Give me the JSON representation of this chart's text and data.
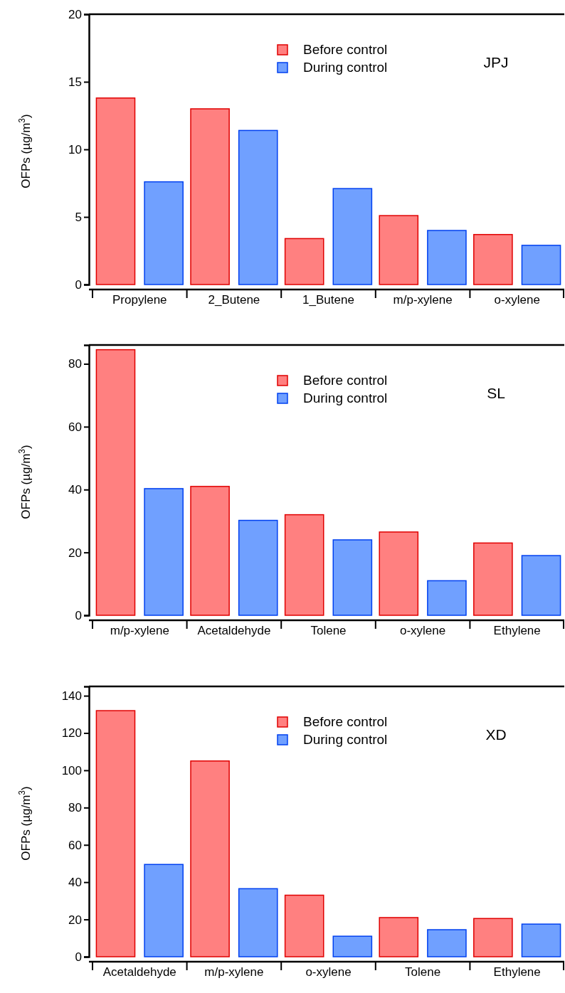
{
  "chart_data": [
    {
      "type": "bar",
      "title": "JPJ",
      "ylabel": "OFPs (µg/m$^{3}$)",
      "categories": [
        "Propylene",
        "2_Butene",
        "1_Butene",
        "m/p-xylene",
        "o-xylene"
      ],
      "series": [
        {
          "name": "Before control",
          "color": "#ff8080",
          "values": [
            13.8,
            13.0,
            3.4,
            5.1,
            3.7
          ]
        },
        {
          "name": "During control",
          "color": "#70a0ff",
          "values": [
            7.6,
            11.4,
            7.1,
            4.0,
            2.9
          ]
        }
      ],
      "ylim": [
        0,
        20
      ],
      "yticks": [
        0,
        5,
        10,
        15,
        20
      ],
      "legend": "top right",
      "grid": false
    },
    {
      "type": "bar",
      "title": "SL",
      "ylabel": "OFPs (µg/m$^{3}$)",
      "categories": [
        "m/p-xylene",
        "Acetaldehyde",
        "Tolene",
        "o-xylene",
        "Ethylene"
      ],
      "series": [
        {
          "name": "Before control",
          "color": "#ff8080",
          "values": [
            84.5,
            41,
            32,
            26.5,
            23
          ]
        },
        {
          "name": "During control",
          "color": "#70a0ff",
          "values": [
            40.3,
            30.2,
            24,
            11,
            19
          ]
        }
      ],
      "ylim": [
        0,
        86
      ],
      "yticks": [
        0,
        20,
        40,
        60,
        80
      ],
      "legend": "top right",
      "grid": false
    },
    {
      "type": "bar",
      "title": "XD",
      "ylabel": "OFPs (µg/m$^{3}$)",
      "categories": [
        "Acetaldehyde",
        "m/p-xylene",
        "o-xylene",
        "Tolene",
        "Ethylene"
      ],
      "series": [
        {
          "name": "Before control",
          "color": "#ff8080",
          "values": [
            132,
            105,
            33,
            21,
            20.5
          ]
        },
        {
          "name": "During control",
          "color": "#70a0ff",
          "values": [
            49.5,
            36.5,
            11,
            14.5,
            17.5
          ]
        }
      ],
      "ylim": [
        0,
        145
      ],
      "yticks": [
        0,
        20,
        40,
        60,
        80,
        100,
        120,
        140
      ],
      "legend": "top right",
      "grid": false
    }
  ]
}
